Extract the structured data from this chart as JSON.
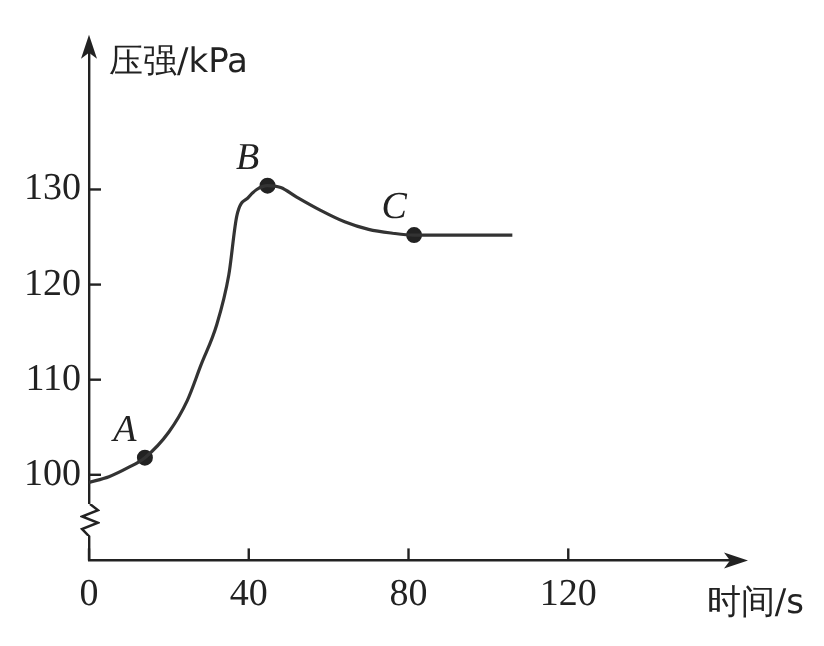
{
  "chart_data": {
    "type": "line",
    "xlabel": "时间/s",
    "ylabel": "压强/kPa",
    "xlim": [
      0,
      162
    ],
    "xticks": [
      0,
      40,
      80,
      120
    ],
    "ylim": [
      91,
      145
    ],
    "yticks": [
      100,
      110,
      120,
      130
    ],
    "grid": false,
    "legend": false,
    "series": [
      {
        "color": "#333333",
        "marker": "none",
        "x": [
          0,
          5,
          10,
          14,
          20,
          24.6,
          28,
          32,
          35,
          37,
          40,
          42,
          44.7,
          48,
          52,
          58,
          64,
          70,
          76,
          81.4,
          90,
          100,
          106
        ],
        "values": [
          99.2,
          99.8,
          100.8,
          101.8,
          104.5,
          107.8,
          111.5,
          115.8,
          121,
          127.2,
          129.2,
          130,
          130.4,
          130.2,
          129.2,
          127.8,
          126.6,
          125.8,
          125.4,
          125.2,
          125.2,
          125.2,
          125.2
        ]
      },
      {
        "type": "scatter",
        "color": "#222222",
        "marker": "circle",
        "x": [
          14,
          44.7,
          81.4
        ],
        "values": [
          101.8,
          130.4,
          125.2
        ]
      }
    ],
    "annotations": [
      {
        "text": "A",
        "x": 14,
        "y": 101.8
      },
      {
        "text": "B",
        "x": 44.7,
        "y": 130.4
      },
      {
        "text": "C",
        "x": 81.4,
        "y": 125.2
      }
    ]
  }
}
